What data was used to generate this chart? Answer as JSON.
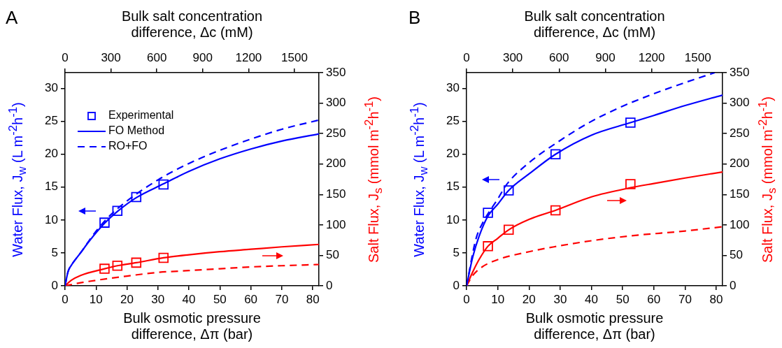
{
  "chart_data": [
    {
      "type": "line",
      "title": "A",
      "xlabel": "Bulk osmotic pressure difference, Δπ (bar)",
      "x2label": "Bulk salt concentration difference, Δc  (mM)",
      "ylabel": "Water Flux, J$_{w}$ (L m$^{-2}$h$^{-1}$)",
      "y2label": "Salt Flux, J$_{s}$ (mmol m$^{-2}$h$^{-1}$)",
      "xlim": [
        0,
        82
      ],
      "xticks": [
        0,
        10,
        20,
        30,
        40,
        50,
        60,
        70,
        80
      ],
      "x2lim": [
        0,
        1660
      ],
      "x2ticks": [
        0,
        300,
        600,
        900,
        1200,
        1500
      ],
      "ylim": [
        0,
        32.4
      ],
      "yticks": [
        0,
        5,
        10,
        15,
        20,
        25,
        30
      ],
      "y2lim": [
        0,
        350
      ],
      "y2ticks": [
        0,
        50,
        100,
        150,
        200,
        250,
        300,
        350
      ],
      "grid": false,
      "legend": "top left",
      "series": [
        {
          "name": "Experimental",
          "type": "scatter",
          "marker": "square",
          "color": "#0000ff",
          "x": [
            12.75,
            16.9,
            23,
            31.8
          ],
          "values": [
            9.6,
            11.4,
            13.5,
            15.4
          ]
        },
        {
          "name": "FO Method",
          "line_style": "solid",
          "color": "#0000ff",
          "x": [
            0,
            1,
            2,
            5,
            8,
            12.75,
            16.9,
            23,
            31.8,
            40,
            50,
            60,
            70,
            82
          ],
          "values": [
            0,
            2.2,
            3.1,
            5.0,
            6.9,
            9.5,
            11.3,
            13.4,
            15.5,
            17.4,
            19.3,
            20.8,
            22.0,
            23.1
          ]
        },
        {
          "name": "RO+FO",
          "line_style": "dashed",
          "color": "#0000ff",
          "x": [
            0,
            1,
            2,
            5,
            10,
            15,
            20,
            30,
            40,
            50,
            60,
            70,
            82
          ],
          "values": [
            0,
            2.2,
            3.1,
            5.0,
            8.3,
            10.9,
            12.9,
            16.1,
            18.6,
            20.6,
            22.3,
            23.8,
            25.2
          ]
        },
        {
          "type": "scatter",
          "marker": "square",
          "axis": "y2",
          "color": "#ff0000",
          "x": [
            12.75,
            16.9,
            23,
            31.8
          ],
          "values": [
            28,
            33,
            38,
            46
          ]
        },
        {
          "line_style": "solid",
          "axis": "y2",
          "color": "#ff0000",
          "x": [
            0,
            2,
            5,
            12.75,
            16.9,
            23,
            31.8,
            40,
            50,
            60,
            70,
            82
          ],
          "values": [
            0,
            9,
            17,
            28,
            33,
            38,
            46,
            51,
            56,
            60,
            64,
            68
          ]
        },
        {
          "line_style": "dashed",
          "axis": "y2",
          "color": "#ff0000",
          "x": [
            0,
            5,
            10,
            20,
            30,
            40,
            50,
            60,
            70,
            82
          ],
          "values": [
            0,
            5,
            9,
            16,
            22,
            25,
            28,
            31,
            33,
            35
          ]
        }
      ]
    },
    {
      "type": "line",
      "title": "B",
      "xlabel": "Bulk osmotic pressure difference, Δπ (bar)",
      "x2label": "Bulk salt concentration difference, Δc  (mM)",
      "ylabel": "Water Flux, J$_{w}$ (L m$^{-2}$h$^{-1}$)",
      "y2label": "Salt Flux, J$_{s}$ (mmol m$^{-2}$h$^{-1}$)",
      "xlim": [
        0,
        82
      ],
      "xticks": [
        0,
        10,
        20,
        30,
        40,
        50,
        60,
        70,
        80
      ],
      "x2lim": [
        0,
        1660
      ],
      "x2ticks": [
        0,
        300,
        600,
        900,
        1200,
        1500
      ],
      "ylim": [
        0,
        32.4
      ],
      "yticks": [
        0,
        5,
        10,
        15,
        20,
        25,
        30
      ],
      "y2lim": [
        0,
        350
      ],
      "y2ticks": [
        0,
        50,
        100,
        150,
        200,
        250,
        300,
        350
      ],
      "grid": false,
      "series": [
        {
          "type": "scatter",
          "marker": "square",
          "color": "#0000ff",
          "x": [
            6.85,
            13.5,
            28.5,
            52.5
          ],
          "values": [
            11.1,
            14.5,
            20.0,
            24.8
          ]
        },
        {
          "line_style": "solid",
          "color": "#0000ff",
          "x": [
            0,
            2,
            4,
            6.85,
            10,
            13.5,
            20,
            28.5,
            40,
            52.5,
            60,
            70,
            82
          ],
          "values": [
            0,
            4.4,
            7.5,
            10.6,
            12.4,
            14.5,
            17.0,
            20.0,
            22.9,
            24.8,
            25.9,
            27.4,
            29.0
          ]
        },
        {
          "line_style": "dashed",
          "color": "#0000ff",
          "x": [
            0,
            3,
            5,
            10,
            13,
            20,
            30,
            40,
            50,
            60,
            70,
            79.5
          ],
          "values": [
            0,
            7.1,
            9.4,
            13.2,
            15.5,
            18.7,
            22.1,
            25.0,
            27.3,
            29.2,
            30.9,
            32.4
          ]
        },
        {
          "type": "scatter",
          "marker": "square",
          "axis": "y2",
          "color": "#ff0000",
          "x": [
            6.85,
            13.5,
            28.5,
            52.5
          ],
          "values": [
            65,
            92,
            124,
            167
          ]
        },
        {
          "line_style": "solid",
          "axis": "y2",
          "color": "#ff0000",
          "x": [
            0,
            2,
            4,
            6.85,
            10,
            13.5,
            20,
            28.5,
            40,
            52.5,
            60,
            70,
            82
          ],
          "values": [
            0,
            23,
            43,
            65,
            78,
            92,
            109,
            124,
            146,
            161,
            168,
            177,
            187
          ]
        },
        {
          "line_style": "dashed",
          "axis": "y2",
          "color": "#ff0000",
          "x": [
            0,
            2,
            5,
            10,
            20,
            28,
            40,
            52.5,
            70,
            82
          ],
          "values": [
            0,
            17,
            31,
            43,
            56,
            64,
            74,
            82,
            90,
            97
          ]
        }
      ]
    }
  ]
}
